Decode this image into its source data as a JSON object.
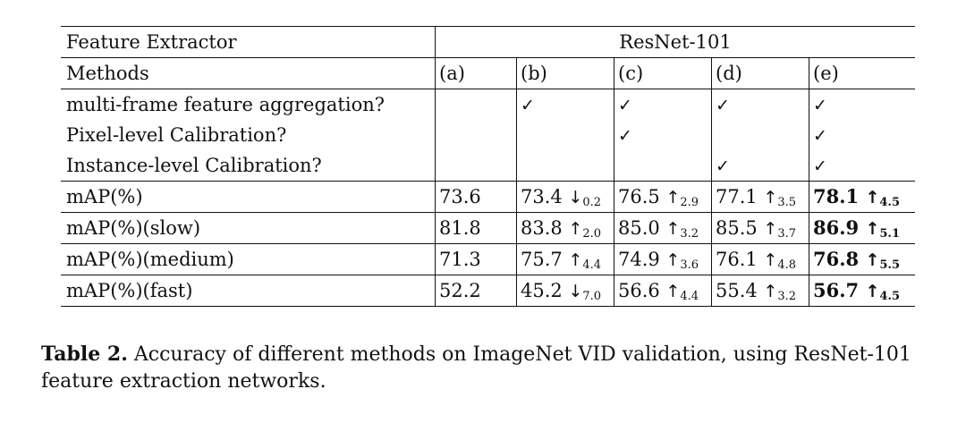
{
  "table": {
    "header_label": "Feature Extractor",
    "header_backbone": "ResNet-101",
    "methods_label": "Methods",
    "columns": [
      "(a)",
      "(b)",
      "(c)",
      "(d)",
      "(e)"
    ],
    "component_rows": [
      {
        "label": "multi-frame feature aggregation?",
        "checks": [
          "",
          "✓",
          "✓",
          "✓",
          "✓"
        ]
      },
      {
        "label": "Pixel-level Calibration?",
        "checks": [
          "",
          "",
          "✓",
          "",
          "✓"
        ]
      },
      {
        "label": "Instance-level Calibration?",
        "checks": [
          "",
          "",
          "",
          "✓",
          "✓"
        ]
      }
    ],
    "metric_rows": [
      {
        "label": "mAP(%)",
        "values": [
          "73.6",
          "73.4",
          "76.5",
          "77.1",
          "78.1"
        ],
        "arrows": [
          "",
          "↓",
          "↑",
          "↑",
          "↑"
        ],
        "deltas": [
          "",
          "0.2",
          "2.9",
          "3.5",
          "4.5"
        ]
      },
      {
        "label": "mAP(%)(slow)",
        "values": [
          "81.8",
          "83.8",
          "85.0",
          "85.5",
          "86.9"
        ],
        "arrows": [
          "",
          "↑",
          "↑",
          "↑",
          "↑"
        ],
        "deltas": [
          "",
          "2.0",
          "3.2",
          "3.7",
          "5.1"
        ]
      },
      {
        "label": "mAP(%)(medium)",
        "values": [
          "71.3",
          "75.7",
          "74.9",
          "76.1",
          "76.8"
        ],
        "arrows": [
          "",
          "↑",
          "↑",
          "↑",
          "↑"
        ],
        "deltas": [
          "",
          "4.4",
          "3.6",
          "4.8",
          "5.5"
        ]
      },
      {
        "label": "mAP(%)(fast)",
        "values": [
          "52.2",
          "45.2",
          "56.6",
          "55.4",
          "56.7"
        ],
        "arrows": [
          "",
          "↓",
          "↑",
          "↑",
          "↑"
        ],
        "deltas": [
          "",
          "7.0",
          "4.4",
          "3.2",
          "4.5"
        ]
      }
    ]
  },
  "caption": {
    "label": "Table 2.",
    "text": " Accuracy of different methods on ImageNet VID validation, using ResNet-101 feature extraction networks."
  }
}
